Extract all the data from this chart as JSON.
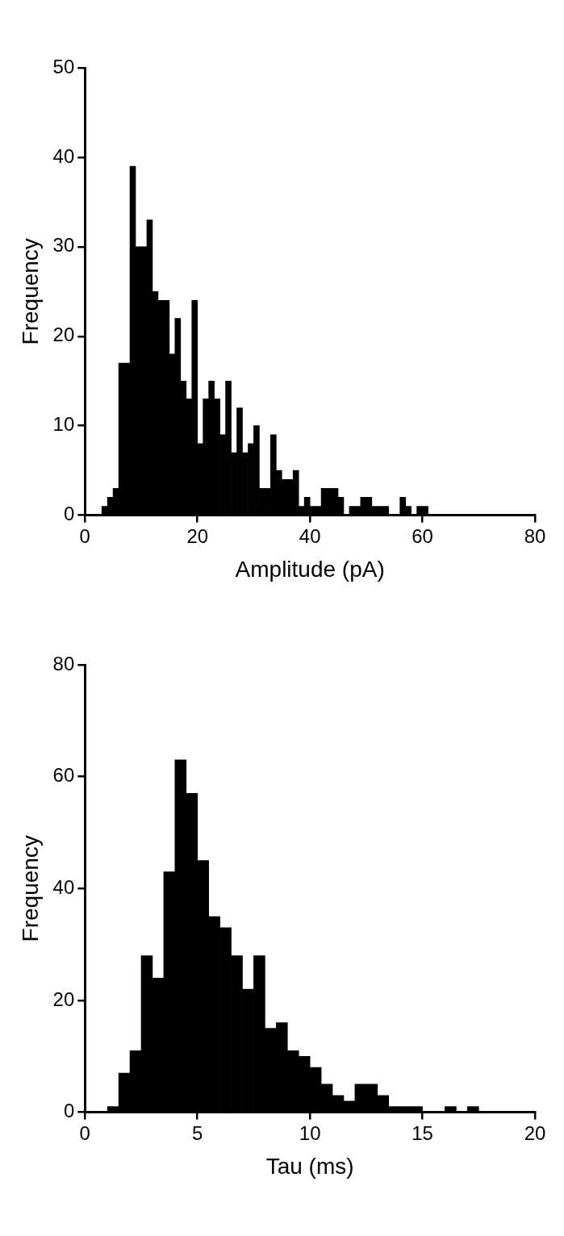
{
  "chart_data": [
    {
      "type": "histogram",
      "xlabel": "Amplitude (pA)",
      "ylabel": "Frequency",
      "color": "#000000",
      "bins": [
        3,
        4,
        5,
        6,
        7,
        8,
        9,
        10,
        11,
        12,
        13,
        14,
        15,
        16,
        17,
        18,
        19,
        20,
        21,
        22,
        23,
        24,
        25,
        26,
        27,
        28,
        29,
        30,
        31,
        32,
        33,
        34,
        35,
        36,
        37,
        38,
        39,
        40,
        41,
        42,
        43,
        44,
        45,
        46,
        47,
        48,
        49,
        50,
        51,
        52,
        53,
        54,
        55,
        56,
        57,
        58,
        59,
        60,
        61
      ],
      "values": [
        1,
        2,
        3,
        17,
        17,
        39,
        30,
        30,
        33,
        25,
        24,
        24,
        18,
        22,
        15,
        13,
        24,
        8,
        13,
        15,
        13,
        9,
        15,
        7,
        12,
        7,
        8,
        10,
        3,
        3,
        9,
        5,
        4,
        4,
        5,
        1,
        2,
        1,
        1,
        3,
        3,
        3,
        2,
        0,
        1,
        1,
        2,
        2,
        1,
        1,
        1,
        0,
        0,
        2,
        1,
        0,
        1,
        1
      ],
      "xlim": [
        0,
        80
      ],
      "xticks": [
        0,
        20,
        40,
        60,
        80
      ],
      "ylim": [
        0,
        50
      ],
      "yticks": [
        0,
        10,
        20,
        30,
        40,
        50
      ],
      "grid": false,
      "legend": false
    },
    {
      "type": "histogram",
      "xlabel": "Tau (ms)",
      "ylabel": "Frequency",
      "color": "#000000",
      "bins": [
        1,
        1.5,
        2,
        2.5,
        3,
        3.5,
        4,
        4.5,
        5,
        5.5,
        6,
        6.5,
        7,
        7.5,
        8,
        8.5,
        9,
        9.5,
        10,
        10.5,
        11,
        11.5,
        12,
        12.5,
        13,
        13.5,
        14,
        14.5,
        15,
        15.5,
        16,
        16.5,
        17,
        17.5
      ],
      "values": [
        1,
        7,
        11,
        28,
        24,
        43,
        63,
        57,
        45,
        35,
        33,
        28,
        22,
        28,
        15,
        16,
        11,
        10,
        8,
        5,
        3,
        2,
        5,
        5,
        3,
        1,
        1,
        1,
        0,
        0,
        1,
        0,
        1
      ],
      "xlim": [
        0,
        20
      ],
      "xticks": [
        0,
        5,
        10,
        15,
        20
      ],
      "ylim": [
        0,
        80
      ],
      "yticks": [
        0,
        20,
        40,
        60,
        80
      ],
      "grid": false,
      "legend": false
    }
  ]
}
